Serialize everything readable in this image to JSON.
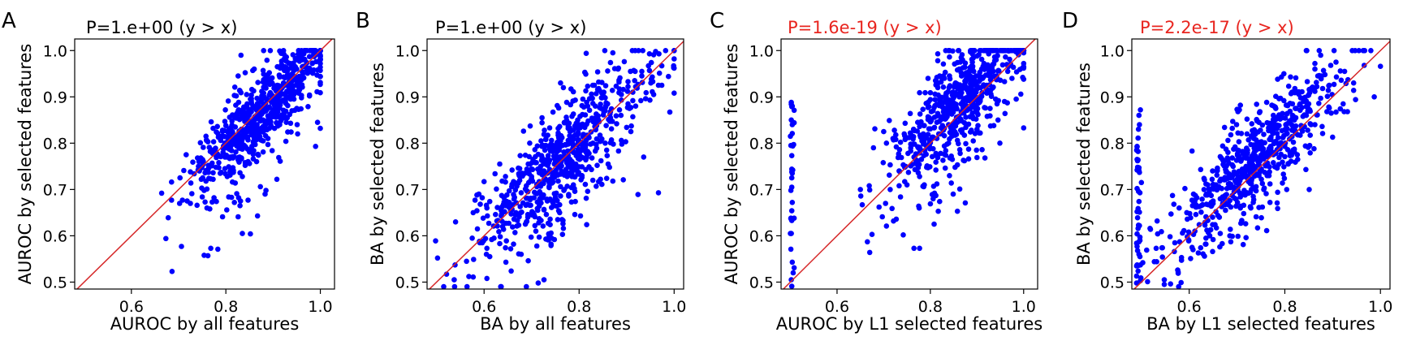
{
  "colors": {
    "points": "#0000ff",
    "diagonal": "#d62728",
    "pvalue_black": "#000000",
    "pvalue_red": "#e8251f"
  },
  "chart_data": [
    {
      "type": "scatter",
      "panel_letter": "A",
      "title": "P=1.e+00 (y > x)",
      "title_color": "#000000",
      "xlabel": "AUROC by all features",
      "ylabel": "AUROC by selected features",
      "xlim": [
        0.48,
        1.03
      ],
      "ylim": [
        0.485,
        1.025
      ],
      "xticks": [
        0.6,
        0.8,
        1.0
      ],
      "xtick_labels": [
        "0.6",
        "0.8",
        "1.0"
      ],
      "yticks": [
        0.5,
        0.6,
        0.7,
        0.8,
        0.9,
        1.0
      ],
      "ytick_labels": [
        "0.5",
        "0.6",
        "0.7",
        "0.8",
        "0.9",
        "1.0"
      ],
      "reference_line": "y = x",
      "n_points": 700,
      "x": [],
      "y": []
    },
    {
      "type": "scatter",
      "panel_letter": "B",
      "title": "P=1.e+00 (y > x)",
      "title_color": "#000000",
      "xlabel": "BA by all features",
      "ylabel": "BA by selected features",
      "xlim": [
        0.48,
        1.02
      ],
      "ylim": [
        0.485,
        1.025
      ],
      "xticks": [
        0.6,
        0.8,
        1.0
      ],
      "xtick_labels": [
        "0.6",
        "0.8",
        "1.0"
      ],
      "yticks": [
        0.5,
        0.6,
        0.7,
        0.8,
        0.9,
        1.0
      ],
      "ytick_labels": [
        "0.5",
        "0.6",
        "0.7",
        "0.8",
        "0.9",
        "1.0"
      ],
      "reference_line": "y = x",
      "n_points": 700,
      "x": [],
      "y": []
    },
    {
      "type": "scatter",
      "panel_letter": "C",
      "title": "P=1.6e-19 (y > x)",
      "title_color": "#e8251f",
      "xlabel": "AUROC by L1 selected features",
      "ylabel": "AUROC by selected features",
      "xlim": [
        0.48,
        1.03
      ],
      "ylim": [
        0.485,
        1.025
      ],
      "xticks": [
        0.6,
        0.8,
        1.0
      ],
      "xtick_labels": [
        "0.6",
        "0.8",
        "1.0"
      ],
      "yticks": [
        0.5,
        0.6,
        0.7,
        0.8,
        0.9,
        1.0
      ],
      "ytick_labels": [
        "0.5",
        "0.6",
        "0.7",
        "0.8",
        "0.9",
        "1.0"
      ],
      "reference_line": "y = x",
      "n_points": 700,
      "x": [],
      "y": []
    },
    {
      "type": "scatter",
      "panel_letter": "D",
      "title": "P=2.2e-17 (y > x)",
      "title_color": "#e8251f",
      "xlabel": "BA by L1 selected features",
      "ylabel": "BA by selected features",
      "xlim": [
        0.48,
        1.02
      ],
      "ylim": [
        0.485,
        1.025
      ],
      "xticks": [
        0.6,
        0.8,
        1.0
      ],
      "xtick_labels": [
        "0.6",
        "0.8",
        "1.0"
      ],
      "yticks": [
        0.5,
        0.6,
        0.7,
        0.8,
        0.9,
        1.0
      ],
      "ytick_labels": [
        "0.5",
        "0.6",
        "0.7",
        "0.8",
        "0.9",
        "1.0"
      ],
      "reference_line": "y = x",
      "n_points": 700,
      "x": [],
      "y": []
    }
  ]
}
